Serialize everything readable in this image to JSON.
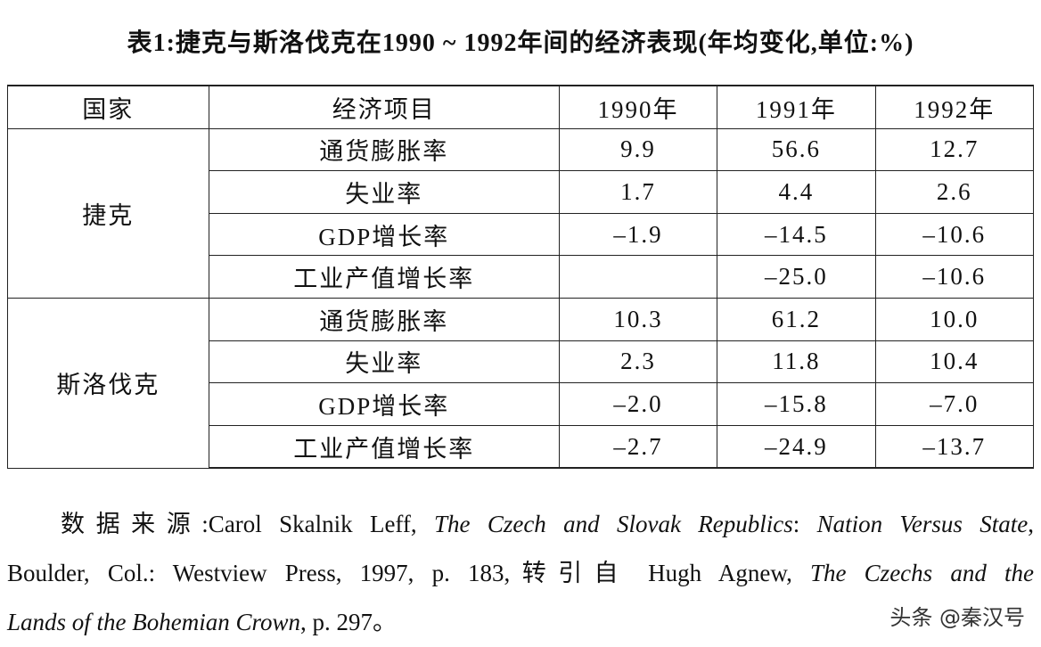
{
  "title": "表1:捷克与斯洛伐克在1990 ~ 1992年间的经济表现(年均变化,单位:%)",
  "table": {
    "header": [
      "国家",
      "经济项目",
      "1990年",
      "1991年",
      "1992年"
    ],
    "groups": [
      {
        "country": "捷克",
        "rows": [
          {
            "item": "通货膨胀率",
            "values": [
              "9.9",
              "56.6",
              "12.7"
            ]
          },
          {
            "item": "失业率",
            "values": [
              "1.7",
              "4.4",
              "2.6"
            ]
          },
          {
            "item": "GDP增长率",
            "values": [
              "–1.9",
              "–14.5",
              "–10.6"
            ]
          },
          {
            "item": "工业产值增长率",
            "values": [
              null,
              "–25.0",
              "–10.6"
            ]
          }
        ]
      },
      {
        "country": "斯洛伐克",
        "rows": [
          {
            "item": "通货膨胀率",
            "values": [
              "10.3",
              "61.2",
              "10.0"
            ]
          },
          {
            "item": "失业率",
            "values": [
              "2.3",
              "11.8",
              "10.4"
            ]
          },
          {
            "item": "GDP增长率",
            "values": [
              "–2.0",
              "–15.8",
              "–7.0"
            ]
          },
          {
            "item": "工业产值增长率",
            "values": [
              "–2.7",
              "–24.9",
              "–13.7"
            ]
          }
        ]
      }
    ]
  },
  "source": {
    "lines": [
      [
        "数据来源:Carol Skalnik Leff, ",
        "The Czech and Slovak Republics",
        ": ",
        "Nation Versus State",
        ","
      ],
      [
        "Boulder, Col.: Westview Press, 1997, p. 183,转引自 Hugh Agnew, ",
        "The Czechs and the"
      ],
      [
        "Lands of the Bohemian Crown",
        ", p. 297。"
      ]
    ]
  },
  "watermark": "头条 @秦汉号"
}
